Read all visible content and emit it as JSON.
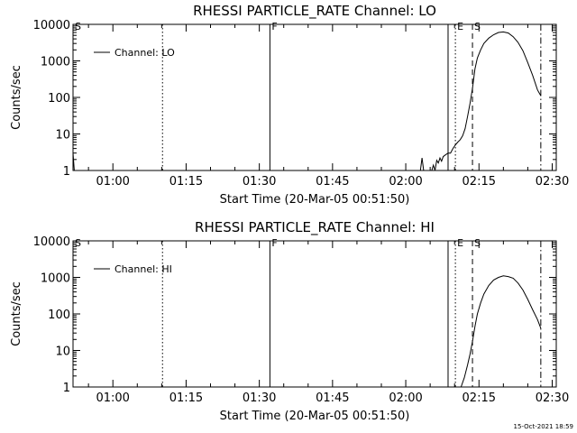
{
  "chart_data": [
    {
      "type": "line",
      "title": "RHESSI PARTICLE_RATE Channel: LO",
      "xlabel": "Start Time (20-Mar-05 00:51:50)",
      "ylabel": "Counts/sec",
      "yscale": "log",
      "ylim": [
        1,
        10000
      ],
      "xlim": [
        "00:51:50",
        "02:30:50"
      ],
      "x_ticks": [
        "01:00",
        "01:15",
        "01:30",
        "01:45",
        "02:00",
        "02:15",
        "02:30"
      ],
      "y_ticks": [
        "1",
        "10",
        "100",
        "1000",
        "10000"
      ],
      "legend": {
        "entries": [
          "Channel: LO"
        ],
        "position": "top-left"
      },
      "markers": [
        {
          "label": "S",
          "time": "00:51:50",
          "style": "solid"
        },
        {
          "label": "",
          "time": "01:10:10",
          "style": "dotted"
        },
        {
          "label": "F",
          "time": "01:32:10",
          "style": "solid"
        },
        {
          "label": "",
          "time": "02:08:40",
          "style": "solid"
        },
        {
          "label": "E",
          "time": "02:10:10",
          "style": "dotted"
        },
        {
          "label": "S",
          "time": "02:13:40",
          "style": "dashed"
        },
        {
          "label": "",
          "time": "02:27:40",
          "style": "dash-dot"
        }
      ],
      "series": [
        {
          "name": "Channel: LO",
          "segments": [
            {
              "x": [
                "00:51:50",
                "00:52:05",
                "00:52:20"
              ],
              "y": [
                3,
                1,
                1
              ]
            },
            {
              "x": [
                "02:03:00",
                "02:03:20",
                "02:03:40",
                "02:04:00"
              ],
              "y": [
                1,
                2.2,
                1,
                1
              ]
            },
            {
              "x": [
                "02:05:20",
                "02:05:40",
                "02:06:00",
                "02:06:20",
                "02:06:40",
                "02:07:00",
                "02:07:20",
                "02:07:40",
                "02:08:00",
                "02:08:20",
                "02:08:40",
                "02:09:10",
                "02:09:40",
                "02:10:10",
                "02:10:40",
                "02:11:10",
                "02:11:40",
                "02:12:10",
                "02:12:40",
                "02:13:10",
                "02:13:40",
                "02:14:10",
                "02:14:40",
                "02:15:20",
                "02:16:00",
                "02:17:00",
                "02:18:00",
                "02:19:00",
                "02:20:00",
                "02:21:00",
                "02:22:00",
                "02:23:00",
                "02:24:00",
                "02:25:00",
                "02:26:00",
                "02:27:00",
                "02:27:40"
              ],
              "y": [
                1,
                1.4,
                1,
                1.9,
                1.6,
                2.2,
                1.8,
                2.4,
                2.6,
                2.8,
                3,
                3,
                4,
                5,
                6,
                7,
                9,
                14,
                30,
                70,
                180,
                600,
                1200,
                2000,
                3000,
                4200,
                5200,
                6000,
                6200,
                5800,
                4600,
                3200,
                1900,
                900,
                400,
                160,
                110
              ]
            }
          ]
        }
      ]
    },
    {
      "type": "line",
      "title": "RHESSI PARTICLE_RATE Channel: HI",
      "xlabel": "Start Time (20-Mar-05 00:51:50)",
      "ylabel": "Counts/sec",
      "yscale": "log",
      "ylim": [
        1,
        10000
      ],
      "xlim": [
        "00:51:50",
        "02:30:50"
      ],
      "x_ticks": [
        "01:00",
        "01:15",
        "01:30",
        "01:45",
        "02:00",
        "02:15",
        "02:30"
      ],
      "y_ticks": [
        "1",
        "10",
        "100",
        "1000",
        "10000"
      ],
      "legend": {
        "entries": [
          "Channel: HI"
        ],
        "position": "top-left"
      },
      "markers": [
        {
          "label": "S",
          "time": "00:51:50",
          "style": "solid"
        },
        {
          "label": "",
          "time": "01:10:10",
          "style": "dotted"
        },
        {
          "label": "F",
          "time": "01:32:10",
          "style": "solid"
        },
        {
          "label": "",
          "time": "02:08:40",
          "style": "solid"
        },
        {
          "label": "E",
          "time": "02:10:10",
          "style": "dotted"
        },
        {
          "label": "S",
          "time": "02:13:40",
          "style": "dashed"
        },
        {
          "label": "",
          "time": "02:27:40",
          "style": "dash-dot"
        }
      ],
      "series": [
        {
          "name": "Channel: HI",
          "segments": [
            {
              "x": [
                "02:11:20",
                "02:12:00",
                "02:12:40",
                "02:13:10",
                "02:13:40",
                "02:14:10",
                "02:14:40",
                "02:15:20",
                "02:16:00",
                "02:17:00",
                "02:18:00",
                "02:19:00",
                "02:20:00",
                "02:21:00",
                "02:22:00",
                "02:23:00",
                "02:24:00",
                "02:25:00",
                "02:26:00",
                "02:27:00",
                "02:27:40"
              ],
              "y": [
                1,
                1.8,
                4,
                8,
                18,
                45,
                100,
                200,
                350,
                600,
                850,
                1000,
                1100,
                1050,
                950,
                700,
                450,
                250,
                130,
                70,
                40
              ]
            }
          ]
        }
      ]
    }
  ],
  "footer": {
    "timestamp": "15-Oct-2021 18:59"
  }
}
